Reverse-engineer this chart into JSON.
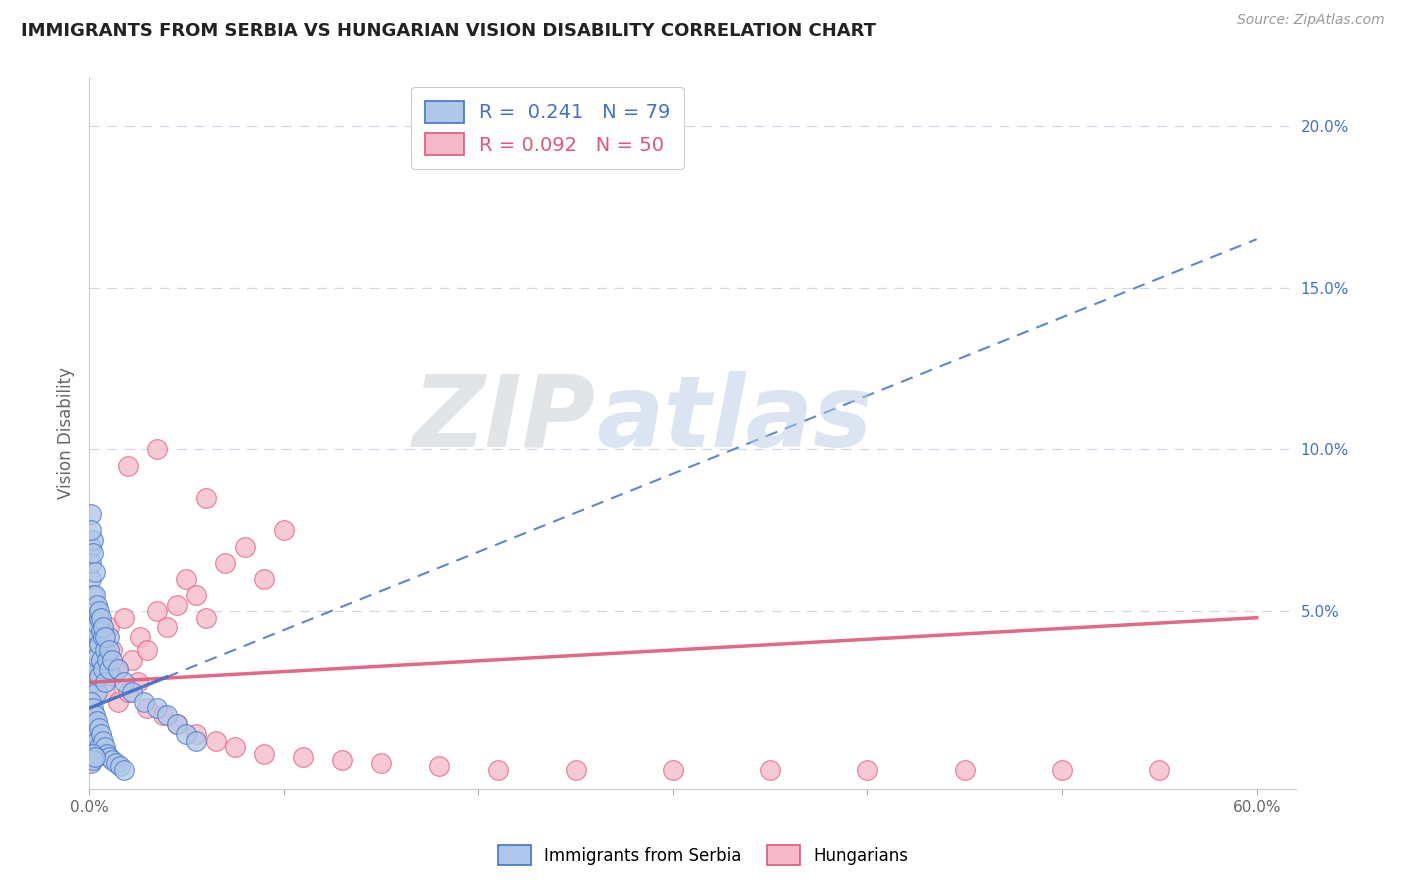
{
  "title": "IMMIGRANTS FROM SERBIA VS HUNGARIAN VISION DISABILITY CORRELATION CHART",
  "source": "Source: ZipAtlas.com",
  "ylabel": "Vision Disability",
  "xlim": [
    0.0,
    0.62
  ],
  "ylim": [
    -0.005,
    0.215
  ],
  "legend1_text": "R =  0.241   N = 79",
  "legend2_text": "R = 0.092   N = 50",
  "blue_fill_color": "#aec6e8",
  "pink_fill_color": "#f5b8c8",
  "blue_edge_color": "#4472c4",
  "pink_edge_color": "#e05878",
  "blue_line_color": "#4472c4",
  "pink_line_color": "#e05878",
  "watermark_zip": "ZIP",
  "watermark_atlas": "atlas",
  "background_color": "#ffffff",
  "grid_color": "#c8d4e8",
  "serbia_points_x": [
    0.001,
    0.001,
    0.001,
    0.001,
    0.001,
    0.001,
    0.002,
    0.002,
    0.002,
    0.002,
    0.002,
    0.003,
    0.003,
    0.003,
    0.003,
    0.004,
    0.004,
    0.004,
    0.005,
    0.005,
    0.005,
    0.006,
    0.006,
    0.007,
    0.007,
    0.008,
    0.008,
    0.009,
    0.01,
    0.01,
    0.001,
    0.001,
    0.001,
    0.002,
    0.002,
    0.003,
    0.003,
    0.004,
    0.004,
    0.005,
    0.005,
    0.006,
    0.007,
    0.008,
    0.009,
    0.01,
    0.012,
    0.014,
    0.016,
    0.018,
    0.001,
    0.001,
    0.002,
    0.002,
    0.003,
    0.001,
    0.001,
    0.001,
    0.002,
    0.002,
    0.003,
    0.003,
    0.004,
    0.005,
    0.006,
    0.007,
    0.008,
    0.01,
    0.012,
    0.015,
    0.018,
    0.022,
    0.028,
    0.035,
    0.04,
    0.045,
    0.05,
    0.055,
    0.001
  ],
  "serbia_points_y": [
    0.05,
    0.045,
    0.04,
    0.035,
    0.03,
    0.06,
    0.055,
    0.048,
    0.042,
    0.038,
    0.032,
    0.05,
    0.044,
    0.038,
    0.028,
    0.046,
    0.036,
    0.025,
    0.048,
    0.04,
    0.03,
    0.044,
    0.035,
    0.042,
    0.032,
    0.038,
    0.028,
    0.035,
    0.042,
    0.032,
    0.022,
    0.018,
    0.012,
    0.02,
    0.015,
    0.018,
    0.012,
    0.016,
    0.01,
    0.014,
    0.008,
    0.012,
    0.01,
    0.008,
    0.006,
    0.005,
    0.004,
    0.003,
    0.002,
    0.001,
    0.005,
    0.003,
    0.006,
    0.004,
    0.005,
    0.07,
    0.065,
    0.08,
    0.072,
    0.068,
    0.062,
    0.055,
    0.052,
    0.05,
    0.048,
    0.045,
    0.042,
    0.038,
    0.035,
    0.032,
    0.028,
    0.025,
    0.022,
    0.02,
    0.018,
    0.015,
    0.012,
    0.01,
    0.075
  ],
  "hungary_points_x": [
    0.002,
    0.004,
    0.006,
    0.008,
    0.01,
    0.012,
    0.015,
    0.018,
    0.022,
    0.026,
    0.03,
    0.035,
    0.04,
    0.045,
    0.05,
    0.055,
    0.06,
    0.07,
    0.08,
    0.09,
    0.002,
    0.005,
    0.008,
    0.012,
    0.015,
    0.02,
    0.025,
    0.03,
    0.038,
    0.045,
    0.055,
    0.065,
    0.075,
    0.09,
    0.11,
    0.13,
    0.15,
    0.18,
    0.21,
    0.25,
    0.3,
    0.35,
    0.4,
    0.45,
    0.5,
    0.55,
    0.02,
    0.035,
    0.06,
    0.1
  ],
  "hungary_points_y": [
    0.035,
    0.038,
    0.042,
    0.04,
    0.045,
    0.038,
    0.032,
    0.048,
    0.035,
    0.042,
    0.038,
    0.05,
    0.045,
    0.052,
    0.06,
    0.055,
    0.048,
    0.065,
    0.07,
    0.06,
    0.028,
    0.032,
    0.025,
    0.03,
    0.022,
    0.025,
    0.028,
    0.02,
    0.018,
    0.015,
    0.012,
    0.01,
    0.008,
    0.006,
    0.005,
    0.004,
    0.003,
    0.002,
    0.001,
    0.001,
    0.001,
    0.001,
    0.001,
    0.001,
    0.001,
    0.001,
    0.095,
    0.1,
    0.085,
    0.075
  ],
  "blue_trend_x": [
    0.0,
    0.6
  ],
  "blue_trend_y": [
    0.02,
    0.165
  ],
  "pink_trend_x": [
    0.0,
    0.6
  ],
  "pink_trend_y": [
    0.028,
    0.048
  ]
}
